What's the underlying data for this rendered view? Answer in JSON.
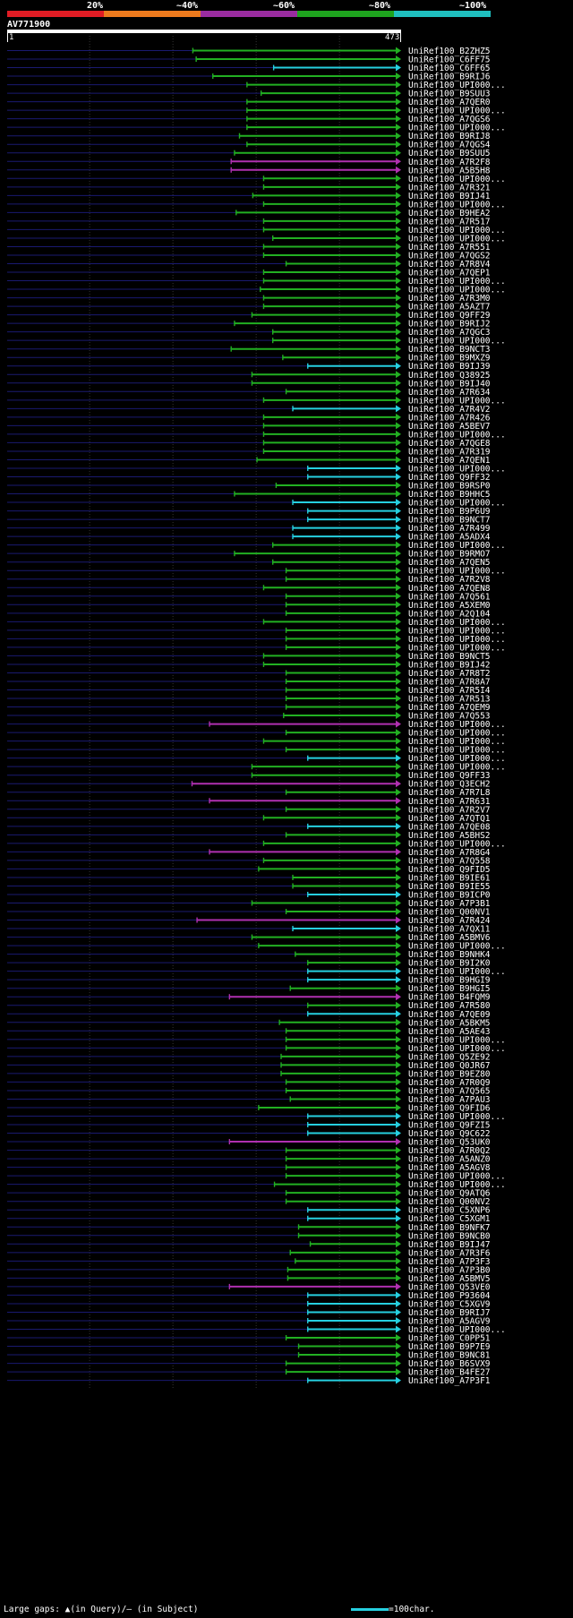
{
  "scale": {
    "labels": [
      "20%",
      "~40%",
      "~60%",
      "~80%",
      "~100%"
    ],
    "colors": [
      "#e01c24",
      "#ec7a1d",
      "#9a2ca0",
      "#1ea31e",
      "#1fbfbf"
    ]
  },
  "query": {
    "id": "AV771900",
    "start": "1",
    "end": "473",
    "length": 473
  },
  "legend": {
    "gaps_text": "Large gaps:",
    "query_gap": "(in Query)/",
    "subject_gap": "(in Subject)",
    "scale_text": "=100char."
  },
  "colors": {
    "green": "#22b022",
    "magenta": "#b030b0",
    "cyan": "#26d0e0",
    "row_line": "#1a1a70"
  },
  "hits": [
    {
      "name": "UniRef100_B2ZHZ5",
      "start": 224,
      "color": "green"
    },
    {
      "name": "UniRef100_C6FF75",
      "start": 228,
      "color": "green"
    },
    {
      "name": "UniRef100_C6FF65",
      "start": 321,
      "color": "cyan"
    },
    {
      "name": "UniRef100_B9RIJ6",
      "start": 248,
      "color": "green"
    },
    {
      "name": "UniRef100_UPI000...",
      "start": 289,
      "color": "green"
    },
    {
      "name": "UniRef100_B9SUU3",
      "start": 306,
      "color": "green"
    },
    {
      "name": "UniRef100_A7QER0",
      "start": 289,
      "color": "green"
    },
    {
      "name": "UniRef100_UPI000...",
      "start": 289,
      "color": "green"
    },
    {
      "name": "UniRef100_A7QGS6",
      "start": 289,
      "color": "green"
    },
    {
      "name": "UniRef100_UPI000...",
      "start": 289,
      "color": "green"
    },
    {
      "name": "UniRef100_B9RIJ8",
      "start": 280,
      "color": "green"
    },
    {
      "name": "UniRef100_A7QGS4",
      "start": 289,
      "color": "green"
    },
    {
      "name": "UniRef100_B9SUU5",
      "start": 274,
      "color": "green"
    },
    {
      "name": "UniRef100_A7R2F8",
      "start": 270,
      "color": "magenta"
    },
    {
      "name": "UniRef100_A5B5H8",
      "start": 270,
      "color": "magenta"
    },
    {
      "name": "UniRef100_UPI000...",
      "start": 309,
      "color": "green"
    },
    {
      "name": "UniRef100_A7R321",
      "start": 309,
      "color": "green"
    },
    {
      "name": "UniRef100_B9IJ41",
      "start": 296,
      "color": "green"
    },
    {
      "name": "UniRef100_UPI000...",
      "start": 309,
      "color": "green"
    },
    {
      "name": "UniRef100_B9HEA2",
      "start": 276,
      "color": "green"
    },
    {
      "name": "UniRef100_A7R517",
      "start": 309,
      "color": "green"
    },
    {
      "name": "UniRef100_UPI000...",
      "start": 309,
      "color": "green"
    },
    {
      "name": "UniRef100_UPI000...",
      "start": 320,
      "color": "green"
    },
    {
      "name": "UniRef100_A7R551",
      "start": 309,
      "color": "green"
    },
    {
      "name": "UniRef100_A7QGS2",
      "start": 309,
      "color": "green"
    },
    {
      "name": "UniRef100_A7R8V4",
      "start": 336,
      "color": "green"
    },
    {
      "name": "UniRef100_A7QEP1",
      "start": 309,
      "color": "green"
    },
    {
      "name": "UniRef100_UPI000...",
      "start": 309,
      "color": "green"
    },
    {
      "name": "UniRef100_UPI000...",
      "start": 305,
      "color": "green"
    },
    {
      "name": "UniRef100_A7R3M0",
      "start": 309,
      "color": "green"
    },
    {
      "name": "UniRef100_A5AZT7",
      "start": 309,
      "color": "green"
    },
    {
      "name": "UniRef100_Q9FF29",
      "start": 295,
      "color": "green"
    },
    {
      "name": "UniRef100_B9RIJ2",
      "start": 274,
      "color": "green"
    },
    {
      "name": "UniRef100_A7QGC3",
      "start": 320,
      "color": "green"
    },
    {
      "name": "UniRef100_UPI000...",
      "start": 320,
      "color": "green"
    },
    {
      "name": "UniRef100_B9NCT3",
      "start": 270,
      "color": "green"
    },
    {
      "name": "UniRef100_B9MXZ9",
      "start": 332,
      "color": "green"
    },
    {
      "name": "UniRef100_B9IJ39",
      "start": 362,
      "color": "cyan"
    },
    {
      "name": "UniRef100_Q38925",
      "start": 295,
      "color": "green"
    },
    {
      "name": "UniRef100_B9IJ40",
      "start": 295,
      "color": "green"
    },
    {
      "name": "UniRef100_A7R634",
      "start": 336,
      "color": "green"
    },
    {
      "name": "UniRef100_UPI000...",
      "start": 309,
      "color": "green"
    },
    {
      "name": "UniRef100_A7R4V2",
      "start": 344,
      "color": "cyan"
    },
    {
      "name": "UniRef100_A7R426",
      "start": 309,
      "color": "green"
    },
    {
      "name": "UniRef100_A5BEV7",
      "start": 309,
      "color": "green"
    },
    {
      "name": "UniRef100_UPI000...",
      "start": 309,
      "color": "green"
    },
    {
      "name": "UniRef100_A7QGE8",
      "start": 309,
      "color": "green"
    },
    {
      "name": "UniRef100_A7R319",
      "start": 309,
      "color": "green"
    },
    {
      "name": "UniRef100_A7QEN1",
      "start": 301,
      "color": "green"
    },
    {
      "name": "UniRef100_UPI000...",
      "start": 362,
      "color": "cyan"
    },
    {
      "name": "UniRef100_Q9FF32",
      "start": 362,
      "color": "cyan"
    },
    {
      "name": "UniRef100_B9RSP0",
      "start": 324,
      "color": "green"
    },
    {
      "name": "UniRef100_B9HHC5",
      "start": 274,
      "color": "green"
    },
    {
      "name": "UniRef100_UPI000...",
      "start": 344,
      "color": "cyan"
    },
    {
      "name": "UniRef100_B9P6U9",
      "start": 362,
      "color": "cyan"
    },
    {
      "name": "UniRef100_B9NCT7",
      "start": 362,
      "color": "cyan"
    },
    {
      "name": "UniRef100_A7R499",
      "start": 344,
      "color": "cyan"
    },
    {
      "name": "UniRef100_A5ADX4",
      "start": 344,
      "color": "cyan"
    },
    {
      "name": "UniRef100_UPI000...",
      "start": 320,
      "color": "green"
    },
    {
      "name": "UniRef100_B9RMO7",
      "start": 274,
      "color": "green"
    },
    {
      "name": "UniRef100_A7QEN5",
      "start": 320,
      "color": "green"
    },
    {
      "name": "UniRef100_UPI000...",
      "start": 336,
      "color": "green"
    },
    {
      "name": "UniRef100_A7R2V8",
      "start": 336,
      "color": "green"
    },
    {
      "name": "UniRef100_A7QEN8",
      "start": 309,
      "color": "green"
    },
    {
      "name": "UniRef100_A7Q561",
      "start": 336,
      "color": "green"
    },
    {
      "name": "UniRef100_A5XEM0",
      "start": 336,
      "color": "green"
    },
    {
      "name": "UniRef100_A2Q104",
      "start": 336,
      "color": "green"
    },
    {
      "name": "UniRef100_UPI000...",
      "start": 309,
      "color": "green"
    },
    {
      "name": "UniRef100_UPI000...",
      "start": 336,
      "color": "green"
    },
    {
      "name": "UniRef100_UPI000...",
      "start": 336,
      "color": "green"
    },
    {
      "name": "UniRef100_UPI000...",
      "start": 336,
      "color": "green"
    },
    {
      "name": "UniRef100_B9NCT5",
      "start": 309,
      "color": "green"
    },
    {
      "name": "UniRef100_B9IJ42",
      "start": 309,
      "color": "green"
    },
    {
      "name": "UniRef100_A7R8T2",
      "start": 336,
      "color": "green"
    },
    {
      "name": "UniRef100_A7R8A7",
      "start": 336,
      "color": "green"
    },
    {
      "name": "UniRef100_A7R5I4",
      "start": 336,
      "color": "green"
    },
    {
      "name": "UniRef100_A7R513",
      "start": 336,
      "color": "green"
    },
    {
      "name": "UniRef100_A7QEM9",
      "start": 336,
      "color": "green"
    },
    {
      "name": "UniRef100_A7Q553",
      "start": 333,
      "color": "green"
    },
    {
      "name": "UniRef100_UPI000...",
      "start": 244,
      "color": "magenta"
    },
    {
      "name": "UniRef100_UPI000...",
      "start": 336,
      "color": "green"
    },
    {
      "name": "UniRef100_UPI000...",
      "start": 309,
      "color": "green"
    },
    {
      "name": "UniRef100_UPI000...",
      "start": 336,
      "color": "green"
    },
    {
      "name": "UniRef100_UPI000...",
      "start": 362,
      "color": "cyan"
    },
    {
      "name": "UniRef100_UPI000...",
      "start": 295,
      "color": "green"
    },
    {
      "name": "UniRef100_Q9FF33",
      "start": 295,
      "color": "green"
    },
    {
      "name": "UniRef100_Q3ECH2",
      "start": 223,
      "color": "magenta"
    },
    {
      "name": "UniRef100_A7R7L8",
      "start": 336,
      "color": "green"
    },
    {
      "name": "UniRef100_A7R631",
      "start": 244,
      "color": "magenta"
    },
    {
      "name": "UniRef100_A7R2V7",
      "start": 336,
      "color": "green"
    },
    {
      "name": "UniRef100_A7QTQ1",
      "start": 309,
      "color": "green"
    },
    {
      "name": "UniRef100_A7QE08",
      "start": 362,
      "color": "cyan"
    },
    {
      "name": "UniRef100_A5BHS2",
      "start": 336,
      "color": "green"
    },
    {
      "name": "UniRef100_UPI000...",
      "start": 309,
      "color": "green"
    },
    {
      "name": "UniRef100_A7R8G4",
      "start": 244,
      "color": "magenta"
    },
    {
      "name": "UniRef100_A7Q558",
      "start": 309,
      "color": "green"
    },
    {
      "name": "UniRef100_Q9FID5",
      "start": 303,
      "color": "green"
    },
    {
      "name": "UniRef100_B9IE61",
      "start": 344,
      "color": "green"
    },
    {
      "name": "UniRef100_B9IE55",
      "start": 344,
      "color": "green"
    },
    {
      "name": "UniRef100_B9ICP0",
      "start": 362,
      "color": "cyan"
    },
    {
      "name": "UniRef100_A7P3B1",
      "start": 295,
      "color": "green"
    },
    {
      "name": "UniRef100_Q00NV1",
      "start": 336,
      "color": "green"
    },
    {
      "name": "UniRef100_A7R424",
      "start": 229,
      "color": "magenta"
    },
    {
      "name": "UniRef100_A7QX11",
      "start": 344,
      "color": "cyan"
    },
    {
      "name": "UniRef100_A5BMV6",
      "start": 295,
      "color": "green"
    },
    {
      "name": "UniRef100_UPI000...",
      "start": 303,
      "color": "green"
    },
    {
      "name": "UniRef100_B9NHK4",
      "start": 347,
      "color": "green"
    },
    {
      "name": "UniRef100_B9I2K0",
      "start": 362,
      "color": "green"
    },
    {
      "name": "UniRef100_UPI000...",
      "start": 362,
      "color": "cyan"
    },
    {
      "name": "UniRef100_B9HGI9",
      "start": 362,
      "color": "cyan"
    },
    {
      "name": "UniRef100_B9HGI5",
      "start": 341,
      "color": "green"
    },
    {
      "name": "UniRef100_B4FQM9",
      "start": 268,
      "color": "magenta"
    },
    {
      "name": "UniRef100_A7R580",
      "start": 362,
      "color": "green"
    },
    {
      "name": "UniRef100_A7QE09",
      "start": 362,
      "color": "cyan"
    },
    {
      "name": "UniRef100_A5BKM5",
      "start": 328,
      "color": "green"
    },
    {
      "name": "UniRef100_A5AE43",
      "start": 336,
      "color": "green"
    },
    {
      "name": "UniRef100_UPI000...",
      "start": 336,
      "color": "green"
    },
    {
      "name": "UniRef100_UPI000...",
      "start": 336,
      "color": "green"
    },
    {
      "name": "UniRef100_Q5ZE92",
      "start": 330,
      "color": "green"
    },
    {
      "name": "UniRef100_Q0JR67",
      "start": 330,
      "color": "green"
    },
    {
      "name": "UniRef100_B9EZ80",
      "start": 330,
      "color": "green"
    },
    {
      "name": "UniRef100_A7R0Q9",
      "start": 336,
      "color": "green"
    },
    {
      "name": "UniRef100_A7Q565",
      "start": 336,
      "color": "green"
    },
    {
      "name": "UniRef100_A7PAU3",
      "start": 341,
      "color": "green"
    },
    {
      "name": "UniRef100_Q9FID6",
      "start": 303,
      "color": "green"
    },
    {
      "name": "UniRef100_UPI000...",
      "start": 362,
      "color": "cyan"
    },
    {
      "name": "UniRef100_Q9FZI5",
      "start": 362,
      "color": "cyan"
    },
    {
      "name": "UniRef100_Q9C622",
      "start": 362,
      "color": "cyan"
    },
    {
      "name": "UniRef100_Q53UK0",
      "start": 268,
      "color": "magenta"
    },
    {
      "name": "UniRef100_A7R0Q2",
      "start": 336,
      "color": "green"
    },
    {
      "name": "UniRef100_A5ANZ0",
      "start": 336,
      "color": "green"
    },
    {
      "name": "UniRef100_A5AGV8",
      "start": 336,
      "color": "green"
    },
    {
      "name": "UniRef100_UPI000...",
      "start": 336,
      "color": "green"
    },
    {
      "name": "UniRef100_UPI000...",
      "start": 322,
      "color": "green"
    },
    {
      "name": "UniRef100_Q9ATQ6",
      "start": 336,
      "color": "green"
    },
    {
      "name": "UniRef100_Q00NV2",
      "start": 336,
      "color": "green"
    },
    {
      "name": "UniRef100_C5XNP6",
      "start": 362,
      "color": "cyan"
    },
    {
      "name": "UniRef100_C5XGM1",
      "start": 362,
      "color": "cyan"
    },
    {
      "name": "UniRef100_B9NFK7",
      "start": 351,
      "color": "green"
    },
    {
      "name": "UniRef100_B9NCB0",
      "start": 351,
      "color": "green"
    },
    {
      "name": "UniRef100_B9IJ47",
      "start": 365,
      "color": "green"
    },
    {
      "name": "UniRef100_A7R3F6",
      "start": 341,
      "color": "green"
    },
    {
      "name": "UniRef100_A7P3F3",
      "start": 347,
      "color": "green"
    },
    {
      "name": "UniRef100_A7P3B0",
      "start": 338,
      "color": "green"
    },
    {
      "name": "UniRef100_A5BMV5",
      "start": 338,
      "color": "green"
    },
    {
      "name": "UniRef100_Q53VE0",
      "start": 268,
      "color": "magenta"
    },
    {
      "name": "UniRef100_P93604",
      "start": 362,
      "color": "cyan"
    },
    {
      "name": "UniRef100_C5XGV9",
      "start": 362,
      "color": "cyan"
    },
    {
      "name": "UniRef100_B9RIJ7",
      "start": 362,
      "color": "cyan"
    },
    {
      "name": "UniRef100_A5AGV9",
      "start": 362,
      "color": "cyan"
    },
    {
      "name": "UniRef100_UPI000...",
      "start": 362,
      "color": "cyan"
    },
    {
      "name": "UniRef100_C0PP51",
      "start": 336,
      "color": "green"
    },
    {
      "name": "UniRef100_B9P7E9",
      "start": 351,
      "color": "green"
    },
    {
      "name": "UniRef100_B9NC81",
      "start": 351,
      "color": "green"
    },
    {
      "name": "UniRef100_B6SVX9",
      "start": 336,
      "color": "green"
    },
    {
      "name": "UniRef100_B4FE27",
      "start": 336,
      "color": "green"
    },
    {
      "name": "UniRef100_A7P3F1",
      "start": 362,
      "color": "cyan"
    }
  ]
}
